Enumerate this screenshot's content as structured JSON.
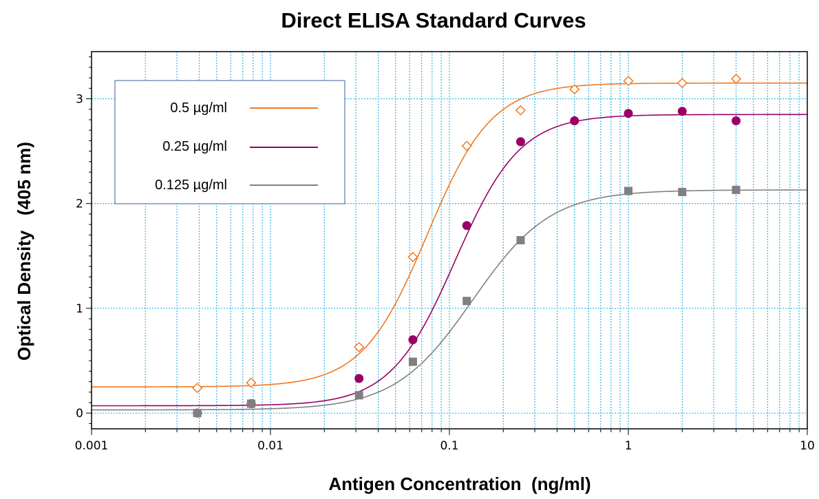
{
  "chart_data": {
    "type": "scatter",
    "title": "Direct ELISA Standard Curves",
    "xlabel": "Antigen Concentration  (ng/ml)",
    "ylabel": "Optical Density   (405 nm)",
    "xscale": "log",
    "xlim": [
      0.001,
      10
    ],
    "ylim": [
      -0.15,
      3.45
    ],
    "x_tick_labels": [
      "0.001",
      "0.01",
      "0.1",
      "1",
      "10"
    ],
    "y_tick_labels": [
      "0",
      "1",
      "2",
      "3"
    ],
    "grid": true,
    "legend_position": "top-left",
    "series": [
      {
        "name": "0.5 µg/ml",
        "color": "#f07820",
        "marker": "open-diamond",
        "x": [
          0.0039,
          0.0078,
          0.03125,
          0.0625,
          0.125,
          0.25,
          0.5,
          1,
          2,
          4
        ],
        "y": [
          0.24,
          0.29,
          0.63,
          1.49,
          2.55,
          2.89,
          3.09,
          3.17,
          3.15,
          3.19
        ],
        "fit": {
          "bottom": 0.25,
          "top": 3.15,
          "ec50": 0.075,
          "hill": 2.4
        }
      },
      {
        "name": "0.25 µg/ml",
        "color": "#990066",
        "marker": "filled-circle",
        "x": [
          0.0039,
          0.0078,
          0.03125,
          0.0625,
          0.125,
          0.25,
          0.5,
          1,
          2,
          4
        ],
        "y": [
          0.0,
          0.09,
          0.33,
          0.7,
          1.79,
          2.59,
          2.79,
          2.86,
          2.88,
          2.79
        ],
        "fit": {
          "bottom": 0.07,
          "top": 2.85,
          "ec50": 0.108,
          "hill": 2.4
        }
      },
      {
        "name": "0.125 µg/ml",
        "color": "#808080",
        "marker": "filled-square",
        "x": [
          0.0039,
          0.0078,
          0.03125,
          0.0625,
          0.125,
          0.25,
          0.5,
          1,
          2,
          4
        ],
        "y": [
          0.0,
          0.09,
          0.17,
          0.49,
          1.07,
          1.65,
          null,
          2.12,
          2.11,
          2.13
        ],
        "fit": {
          "bottom": 0.03,
          "top": 2.13,
          "ec50": 0.135,
          "hill": 2.0
        }
      }
    ]
  }
}
